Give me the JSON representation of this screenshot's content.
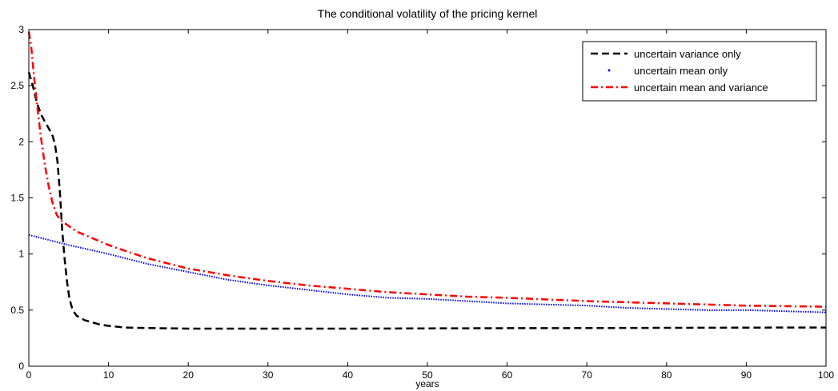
{
  "chart_data": {
    "type": "line",
    "title": "The conditional volatility of the pricing kernel",
    "xlabel": "years",
    "ylabel": "",
    "xlim": [
      0,
      100
    ],
    "ylim": [
      0,
      3
    ],
    "x_ticks": [
      0,
      10,
      20,
      30,
      40,
      50,
      60,
      70,
      80,
      90,
      100
    ],
    "y_ticks": [
      0,
      0.5,
      1,
      1.5,
      2,
      2.5,
      3
    ],
    "x_tick_labels": [
      "0",
      "10",
      "20",
      "30",
      "40",
      "50",
      "60",
      "70",
      "80",
      "90",
      "100"
    ],
    "y_tick_labels": [
      "0",
      "0.5",
      "1",
      "1.5",
      "2",
      "2.5",
      "3"
    ],
    "grid": false,
    "legend_position": "top-right",
    "series": [
      {
        "name": "uncertain variance only",
        "color": "#000000",
        "style": "dashed",
        "x": [
          0,
          0.5,
          1,
          1.5,
          2,
          2.5,
          3,
          3.3,
          3.6,
          3.9,
          4.2,
          4.5,
          4.8,
          5.1,
          5.5,
          6,
          7,
          8,
          9,
          10,
          12,
          15,
          20,
          25,
          30,
          40,
          50,
          60,
          70,
          80,
          90,
          100
        ],
        "y": [
          2.62,
          2.5,
          2.35,
          2.25,
          2.18,
          2.12,
          2.05,
          1.97,
          1.82,
          1.55,
          1.2,
          0.95,
          0.75,
          0.6,
          0.5,
          0.45,
          0.41,
          0.39,
          0.37,
          0.36,
          0.345,
          0.34,
          0.335,
          0.335,
          0.335,
          0.335,
          0.337,
          0.339,
          0.34,
          0.342,
          0.344,
          0.345
        ]
      },
      {
        "name": "uncertain mean only",
        "color": "#0000ff",
        "style": "dotted",
        "x": [
          0,
          5,
          10,
          15,
          20,
          25,
          30,
          35,
          40,
          45,
          50,
          55,
          60,
          65,
          70,
          75,
          80,
          85,
          90,
          95,
          100
        ],
        "y": [
          1.17,
          1.08,
          1.0,
          0.91,
          0.84,
          0.77,
          0.72,
          0.68,
          0.64,
          0.61,
          0.6,
          0.58,
          0.56,
          0.55,
          0.54,
          0.52,
          0.51,
          0.5,
          0.5,
          0.49,
          0.48
        ]
      },
      {
        "name": "uncertain mean and variance",
        "color": "#ff0000",
        "style": "dashdot",
        "x": [
          0,
          0.3,
          0.6,
          1,
          1.5,
          2,
          2.5,
          3,
          3.5,
          4,
          5,
          6,
          8,
          10,
          12,
          15,
          20,
          25,
          30,
          35,
          40,
          45,
          50,
          55,
          60,
          65,
          70,
          75,
          80,
          85,
          90,
          95,
          100
        ],
        "y": [
          2.98,
          2.85,
          2.62,
          2.35,
          2.05,
          1.8,
          1.6,
          1.45,
          1.35,
          1.3,
          1.25,
          1.2,
          1.14,
          1.08,
          1.03,
          0.96,
          0.87,
          0.81,
          0.76,
          0.72,
          0.69,
          0.66,
          0.64,
          0.62,
          0.61,
          0.595,
          0.58,
          0.57,
          0.56,
          0.55,
          0.54,
          0.535,
          0.53
        ]
      }
    ]
  }
}
